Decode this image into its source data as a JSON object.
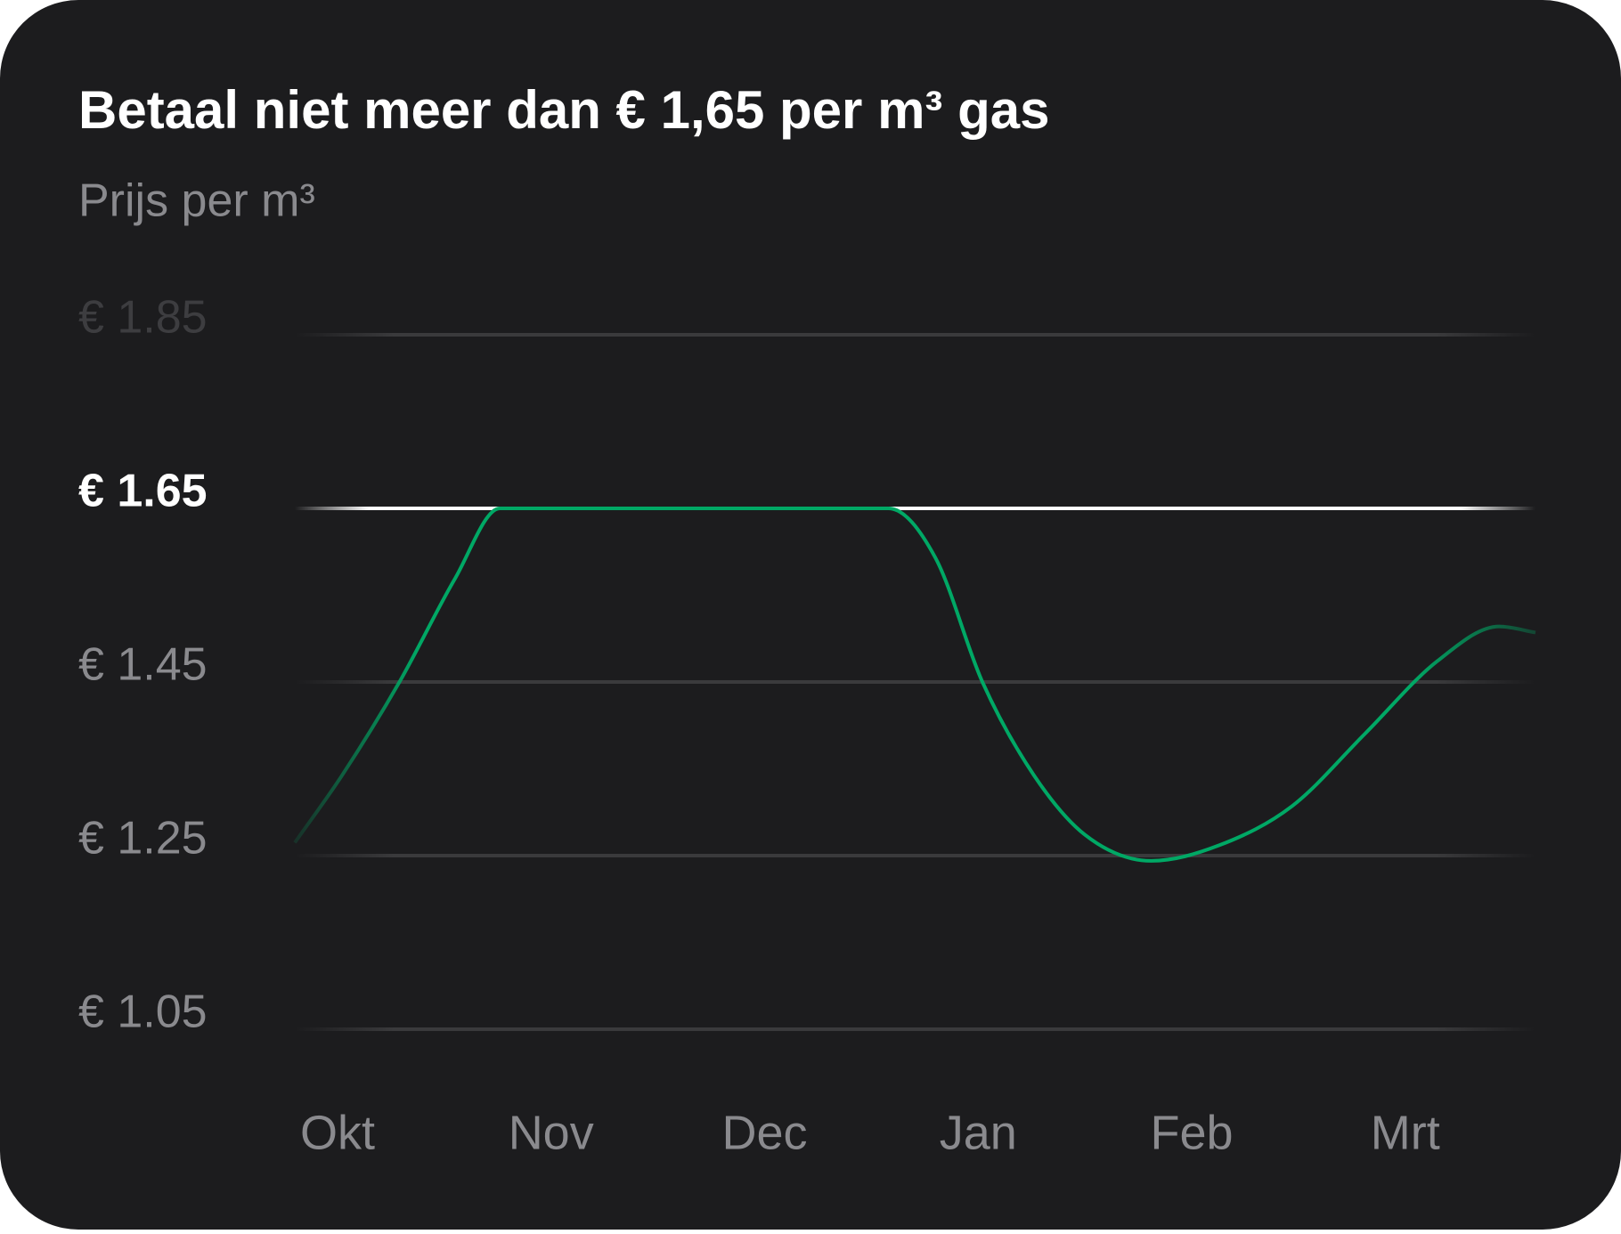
{
  "chart_data": {
    "type": "line",
    "title": "Betaal niet meer dan € 1,65 per m³ gas",
    "subtitle": "Prijs per m³",
    "x": [
      -0.2,
      0.02,
      0.29,
      0.55,
      0.76,
      2.58,
      2.8,
      3.02,
      3.26,
      3.5,
      3.81,
      4.13,
      4.47,
      4.81,
      5.15,
      5.44,
      5.61
    ],
    "series": [
      {
        "color": "#00a865",
        "values": [
          1.265,
          1.342,
          1.45,
          1.569,
          1.65,
          1.65,
          1.593,
          1.45,
          1.343,
          1.274,
          1.244,
          1.262,
          1.307,
          1.39,
          1.474,
          1.514,
          1.507
        ]
      }
    ],
    "xlim": [
      -0.2,
      5.61
    ],
    "xticks": [
      {
        "value": 0,
        "label": "Okt"
      },
      {
        "value": 1,
        "label": "Nov"
      },
      {
        "value": 2,
        "label": "Dec"
      },
      {
        "value": 3,
        "label": "Jan"
      },
      {
        "value": 4,
        "label": "Feb"
      },
      {
        "value": 5,
        "label": "Mrt"
      }
    ],
    "ylim": [
      1.05,
      1.85
    ],
    "yticks": [
      {
        "value": 1.05,
        "label": "€ 1.05"
      },
      {
        "value": 1.25,
        "label": "€ 1.25"
      },
      {
        "value": 1.45,
        "label": "€ 1.45"
      },
      {
        "value": 1.65,
        "label": "€ 1.65"
      },
      {
        "value": 1.85,
        "label": "€ 1.85"
      }
    ],
    "reference_line": {
      "value": 1.65,
      "color": "#ffffff"
    },
    "grid": true
  }
}
